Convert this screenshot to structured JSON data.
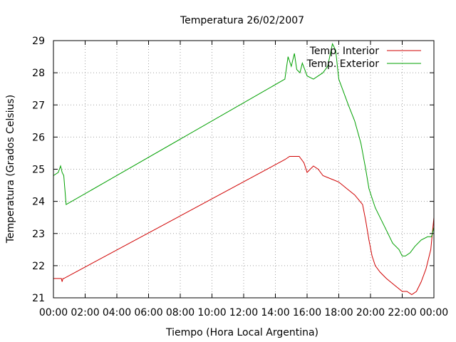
{
  "chart_data": {
    "type": "line",
    "title": "Temperatura 26/02/2007",
    "xlabel": "Tiempo (Hora Local Argentina)",
    "ylabel": "Temperatura (Grados Celsius)",
    "xlim": [
      0,
      24
    ],
    "ylim": [
      21,
      29
    ],
    "x_ticks": [
      "00:00",
      "02:00",
      "04:00",
      "06:00",
      "08:00",
      "10:00",
      "12:00",
      "14:00",
      "16:00",
      "18:00",
      "20:00",
      "22:00",
      "00:00"
    ],
    "y_ticks": [
      "21",
      "22",
      "23",
      "24",
      "25",
      "26",
      "27",
      "28",
      "29"
    ],
    "grid": true,
    "legend_position": "top-right",
    "series": [
      {
        "name": "Temp. Interior",
        "color": "#d00000",
        "x": [
          0,
          0.5,
          0.55,
          0.6,
          0.65,
          14.6,
          14.9,
          15.1,
          15.5,
          15.8,
          16.0,
          16.2,
          16.4,
          16.7,
          17.0,
          17.5,
          18.0,
          18.5,
          19.0,
          19.5,
          19.7,
          19.9,
          20.1,
          20.3,
          20.6,
          21.0,
          21.5,
          22.0,
          22.3,
          22.6,
          22.9,
          23.2,
          23.5,
          23.8,
          24.0
        ],
        "y": [
          21.6,
          21.6,
          21.5,
          21.6,
          21.6,
          25.3,
          25.4,
          25.4,
          25.4,
          25.2,
          24.9,
          25.0,
          25.1,
          25.0,
          24.8,
          24.7,
          24.6,
          24.4,
          24.2,
          23.9,
          23.4,
          22.8,
          22.3,
          22.0,
          21.8,
          21.6,
          21.4,
          21.2,
          21.2,
          21.1,
          21.2,
          21.5,
          21.9,
          22.5,
          23.5
        ]
      },
      {
        "name": "Temp. Exterior",
        "color": "#00a000",
        "x": [
          0,
          0.3,
          0.45,
          0.55,
          0.65,
          0.8,
          14.6,
          14.8,
          15.0,
          15.2,
          15.35,
          15.55,
          15.7,
          15.85,
          16.0,
          16.4,
          16.7,
          17.0,
          17.3,
          17.6,
          17.8,
          18.0,
          18.3,
          18.6,
          19.0,
          19.4,
          19.7,
          19.9,
          20.1,
          20.3,
          20.6,
          21.0,
          21.4,
          21.8,
          22.0,
          22.2,
          22.5,
          22.8,
          23.2,
          23.6,
          23.85,
          24.0
        ],
        "y": [
          24.8,
          24.9,
          25.1,
          24.9,
          24.8,
          23.9,
          27.8,
          28.5,
          28.2,
          28.6,
          28.1,
          28.0,
          28.3,
          28.1,
          27.9,
          27.8,
          27.9,
          28.0,
          28.2,
          28.9,
          28.7,
          27.8,
          27.4,
          27.0,
          26.5,
          25.8,
          25.0,
          24.4,
          24.1,
          23.8,
          23.5,
          23.1,
          22.7,
          22.5,
          22.3,
          22.3,
          22.4,
          22.6,
          22.8,
          22.9,
          22.9,
          23.2
        ]
      }
    ]
  }
}
